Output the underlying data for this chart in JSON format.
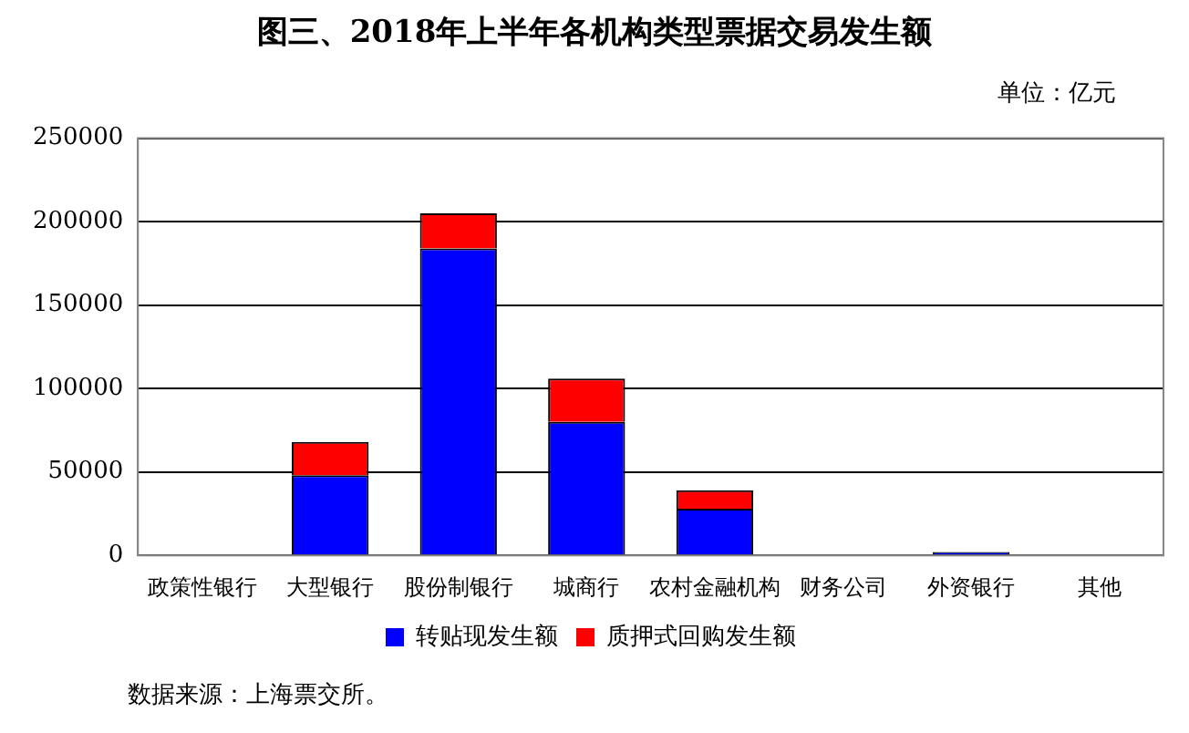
{
  "chart_data": {
    "type": "bar",
    "title": "图三、2018年上半年各机构类型票据交易发生额",
    "annotations": [
      "单位：亿元",
      "数据来源：上海票交所。"
    ],
    "categories": [
      "政策性银行",
      "大型银行",
      "股份制银行",
      "城商行",
      "农村金融机构",
      "财务公司",
      "外资银行",
      "其他"
    ],
    "series": [
      {
        "name": "转贴现发生额",
        "color": "#0000ff",
        "values": [
          0,
          48000,
          184000,
          80000,
          28000,
          0,
          2000,
          0
        ]
      },
      {
        "name": "质押式回购发生额",
        "color": "#ff0000",
        "values": [
          0,
          20000,
          21000,
          26000,
          11000,
          0,
          null,
          0
        ]
      }
    ],
    "stacked": true,
    "ylim": [
      0,
      250000
    ],
    "yticks": [
      0,
      50000,
      100000,
      150000,
      200000,
      250000
    ],
    "grid": "y",
    "legend": "bottom"
  }
}
